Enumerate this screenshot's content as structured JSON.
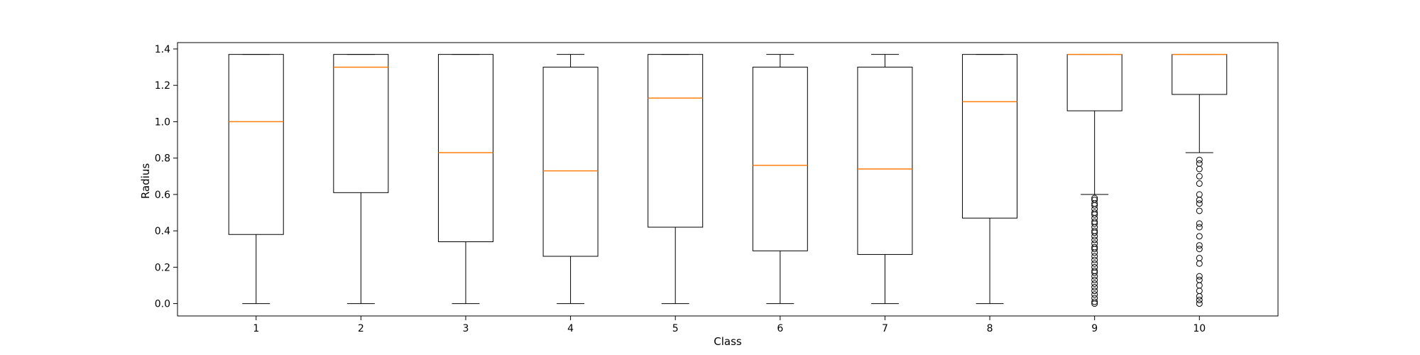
{
  "chart_data": {
    "type": "box",
    "xlabel": "Class",
    "ylabel": "Radius",
    "categories": [
      "1",
      "2",
      "3",
      "4",
      "5",
      "6",
      "7",
      "8",
      "9",
      "10"
    ],
    "yticks": [
      "0.0",
      "0.2",
      "0.4",
      "0.6",
      "0.8",
      "1.0",
      "1.2",
      "1.4"
    ],
    "ylim": [
      -0.068,
      1.435
    ],
    "grid": false,
    "colors": {
      "box": "#000000",
      "median": "#ff7f0e",
      "outlier": "#000000"
    },
    "boxes": [
      {
        "category": "1",
        "whisker_low": 0.0,
        "q1": 0.38,
        "median": 1.0,
        "q3": 1.37,
        "whisker_high": 1.37,
        "outliers": []
      },
      {
        "category": "2",
        "whisker_low": 0.0,
        "q1": 0.61,
        "median": 1.3,
        "q3": 1.37,
        "whisker_high": 1.37,
        "outliers": []
      },
      {
        "category": "3",
        "whisker_low": 0.0,
        "q1": 0.34,
        "median": 0.83,
        "q3": 1.37,
        "whisker_high": 1.37,
        "outliers": []
      },
      {
        "category": "4",
        "whisker_low": 0.0,
        "q1": 0.26,
        "median": 0.73,
        "q3": 1.3,
        "whisker_high": 1.37,
        "outliers": []
      },
      {
        "category": "5",
        "whisker_low": 0.0,
        "q1": 0.42,
        "median": 1.13,
        "q3": 1.37,
        "whisker_high": 1.37,
        "outliers": []
      },
      {
        "category": "6",
        "whisker_low": 0.0,
        "q1": 0.29,
        "median": 0.76,
        "q3": 1.3,
        "whisker_high": 1.37,
        "outliers": []
      },
      {
        "category": "7",
        "whisker_low": 0.0,
        "q1": 0.27,
        "median": 0.74,
        "q3": 1.3,
        "whisker_high": 1.37,
        "outliers": []
      },
      {
        "category": "8",
        "whisker_low": 0.0,
        "q1": 0.47,
        "median": 1.11,
        "q3": 1.37,
        "whisker_high": 1.37,
        "outliers": []
      },
      {
        "category": "9",
        "whisker_low": 0.6,
        "q1": 1.06,
        "median": 1.37,
        "q3": 1.37,
        "whisker_high": 1.37,
        "outliers": [
          0.58,
          0.57,
          0.55,
          0.54,
          0.52,
          0.5,
          0.49,
          0.47,
          0.45,
          0.44,
          0.42,
          0.4,
          0.39,
          0.37,
          0.35,
          0.33,
          0.31,
          0.3,
          0.28,
          0.26,
          0.24,
          0.22,
          0.2,
          0.18,
          0.17,
          0.15,
          0.13,
          0.11,
          0.09,
          0.07,
          0.05,
          0.03,
          0.01,
          0.0
        ]
      },
      {
        "category": "10",
        "whisker_low": 0.83,
        "q1": 1.15,
        "median": 1.37,
        "q3": 1.37,
        "whisker_high": 1.37,
        "outliers": [
          0.79,
          0.77,
          0.74,
          0.7,
          0.66,
          0.6,
          0.57,
          0.55,
          0.51,
          0.44,
          0.42,
          0.37,
          0.32,
          0.3,
          0.25,
          0.22,
          0.15,
          0.13,
          0.1,
          0.07,
          0.04,
          0.02,
          0.0
        ]
      }
    ]
  }
}
